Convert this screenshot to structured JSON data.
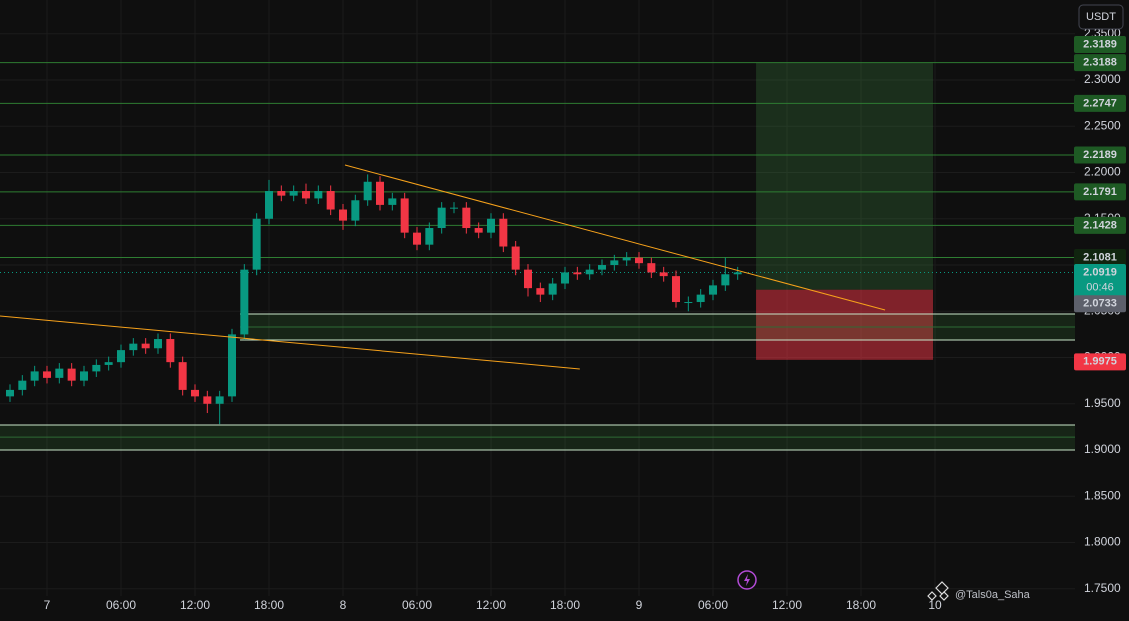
{
  "chart_data": {
    "type": "candlestick",
    "currency": "USDT",
    "x": [
      -3,
      -2,
      -1,
      0,
      1,
      2,
      3,
      4,
      5,
      6,
      7,
      8,
      9,
      10,
      11,
      12,
      13,
      14,
      15,
      16,
      17,
      18,
      19,
      20,
      21,
      22,
      23,
      24,
      25,
      26,
      27,
      28,
      29,
      30,
      31,
      32,
      33,
      34,
      35,
      36,
      37,
      38,
      39,
      40,
      41,
      42,
      43,
      44,
      45,
      46,
      47,
      48,
      49,
      50,
      51,
      52,
      53,
      54,
      55,
      56
    ],
    "open": [
      1.958,
      1.965,
      1.975,
      1.985,
      1.978,
      1.988,
      1.975,
      1.985,
      1.992,
      1.995,
      2.008,
      2.015,
      2.01,
      2.02,
      1.995,
      1.965,
      1.958,
      1.95,
      1.958,
      2.025,
      2.095,
      2.15,
      2.18,
      2.175,
      2.18,
      2.172,
      2.18,
      2.16,
      2.148,
      2.17,
      2.19,
      2.165,
      2.172,
      2.135,
      2.122,
      2.14,
      2.162,
      2.162,
      2.14,
      2.135,
      2.15,
      2.12,
      2.095,
      2.075,
      2.068,
      2.08,
      2.092,
      2.09,
      2.095,
      2.1,
      2.105,
      2.108,
      2.102,
      2.092,
      2.088,
      2.06,
      2.06,
      2.068,
      2.078,
      2.09
    ],
    "high": [
      1.971,
      1.981,
      1.991,
      1.991,
      1.994,
      1.994,
      1.991,
      1.998,
      2.001,
      2.014,
      2.021,
      2.021,
      2.026,
      2.026,
      2.001,
      1.971,
      1.964,
      1.964,
      2.031,
      2.101,
      2.156,
      2.192,
      2.186,
      2.186,
      2.188,
      2.186,
      2.186,
      2.166,
      2.176,
      2.198,
      2.196,
      2.178,
      2.178,
      2.141,
      2.146,
      2.168,
      2.168,
      2.168,
      2.146,
      2.156,
      2.156,
      2.126,
      2.101,
      2.081,
      2.086,
      2.098,
      2.098,
      2.101,
      2.106,
      2.111,
      2.114,
      2.114,
      2.108,
      2.098,
      2.094,
      2.066,
      2.074,
      2.084,
      2.108,
      2.098
    ],
    "low": [
      1.952,
      1.959,
      1.969,
      1.972,
      1.972,
      1.969,
      1.969,
      1.979,
      1.986,
      1.989,
      2.002,
      2.004,
      2.004,
      1.989,
      1.959,
      1.952,
      1.94,
      1.928,
      1.952,
      2.019,
      2.089,
      2.144,
      2.169,
      2.169,
      2.166,
      2.166,
      2.154,
      2.138,
      2.142,
      2.164,
      2.159,
      2.159,
      2.129,
      2.116,
      2.116,
      2.134,
      2.156,
      2.134,
      2.129,
      2.129,
      2.114,
      2.089,
      2.066,
      2.06,
      2.062,
      2.074,
      2.084,
      2.084,
      2.089,
      2.094,
      2.099,
      2.096,
      2.086,
      2.082,
      2.054,
      2.05,
      2.054,
      2.062,
      2.072,
      2.084
    ],
    "close": [
      1.965,
      1.975,
      1.985,
      1.978,
      1.988,
      1.975,
      1.985,
      1.992,
      1.995,
      2.008,
      2.015,
      2.01,
      2.02,
      1.995,
      1.965,
      1.958,
      1.95,
      1.958,
      2.025,
      2.095,
      2.15,
      2.18,
      2.175,
      2.18,
      2.172,
      2.18,
      2.16,
      2.148,
      2.17,
      2.19,
      2.165,
      2.172,
      2.135,
      2.122,
      2.14,
      2.162,
      2.162,
      2.14,
      2.135,
      2.15,
      2.12,
      2.095,
      2.075,
      2.068,
      2.08,
      2.092,
      2.09,
      2.095,
      2.1,
      2.105,
      2.108,
      2.102,
      2.092,
      2.088,
      2.06,
      2.06,
      2.068,
      2.078,
      2.09,
      2.092
    ],
    "up_color": "#089981",
    "down_color": "#f23645",
    "xlim": [
      -3.81,
      83.35
    ],
    "xticks": [
      {
        "value": 0,
        "label": "7"
      },
      {
        "value": 6,
        "label": "06:00"
      },
      {
        "value": 12,
        "label": "12:00"
      },
      {
        "value": 18,
        "label": "18:00"
      },
      {
        "value": 24,
        "label": "8"
      },
      {
        "value": 30,
        "label": "06:00"
      },
      {
        "value": 36,
        "label": "12:00"
      },
      {
        "value": 42,
        "label": "18:00"
      },
      {
        "value": 48,
        "label": "9"
      },
      {
        "value": 54,
        "label": "06:00"
      },
      {
        "value": 60,
        "label": "12:00"
      },
      {
        "value": 66,
        "label": "18:00"
      },
      {
        "value": 72,
        "label": "10"
      }
    ],
    "ylim": [
      1.7422,
      2.3865
    ],
    "yticks": [
      {
        "value": 1.75,
        "label": "1.7500"
      },
      {
        "value": 1.8,
        "label": "1.8000"
      },
      {
        "value": 1.85,
        "label": "1.8500"
      },
      {
        "value": 1.9,
        "label": "1.9000"
      },
      {
        "value": 1.95,
        "label": "1.9500"
      },
      {
        "value": 2.0,
        "label": "2.0000"
      },
      {
        "value": 2.05,
        "label": "2.0500"
      },
      {
        "value": 2.1,
        "label": "2.1000"
      },
      {
        "value": 2.15,
        "label": "2.1500"
      },
      {
        "value": 2.2,
        "label": "2.2000"
      },
      {
        "value": 2.25,
        "label": "2.2500"
      },
      {
        "value": 2.3,
        "label": "2.3000"
      },
      {
        "value": 2.35,
        "label": "2.3500"
      }
    ],
    "grid": true,
    "levels": [
      {
        "value": 2.3188,
        "label": "2.3188"
      },
      {
        "value": 2.2747,
        "label": "2.2747"
      },
      {
        "value": 2.2189,
        "label": "2.2189"
      },
      {
        "value": 2.1791,
        "label": "2.1791"
      },
      {
        "value": 2.1428,
        "label": "2.1428"
      },
      {
        "value": 2.1081,
        "label": "2.1081"
      }
    ],
    "zones": [
      {
        "start": 15.65,
        "top": 2.047,
        "mid": 2.033,
        "bottom": 2.019
      },
      {
        "start": -3.81,
        "top": 1.927,
        "mid": 1.914,
        "bottom": 1.9
      }
    ],
    "trendlines": [
      {
        "x": [
          24.16,
          67.95
        ],
        "y": [
          2.2081,
          2.0514
        ]
      },
      {
        "x": [
          -3.81,
          43.2
        ],
        "y": [
          2.0449,
          1.9876
        ]
      }
    ],
    "position": {
      "start": 57.49,
      "end": 71.84,
      "target": {
        "value": 2.3189,
        "label": "2.3189"
      },
      "entry": {
        "value": 2.0733,
        "label": "2.0733"
      },
      "stop": {
        "value": 1.9975,
        "label": "1.9975"
      }
    },
    "current_price": {
      "value": 2.0919,
      "label": "2.0919",
      "countdown": "00:46"
    },
    "watermark": "@Tals0a_Saha"
  }
}
